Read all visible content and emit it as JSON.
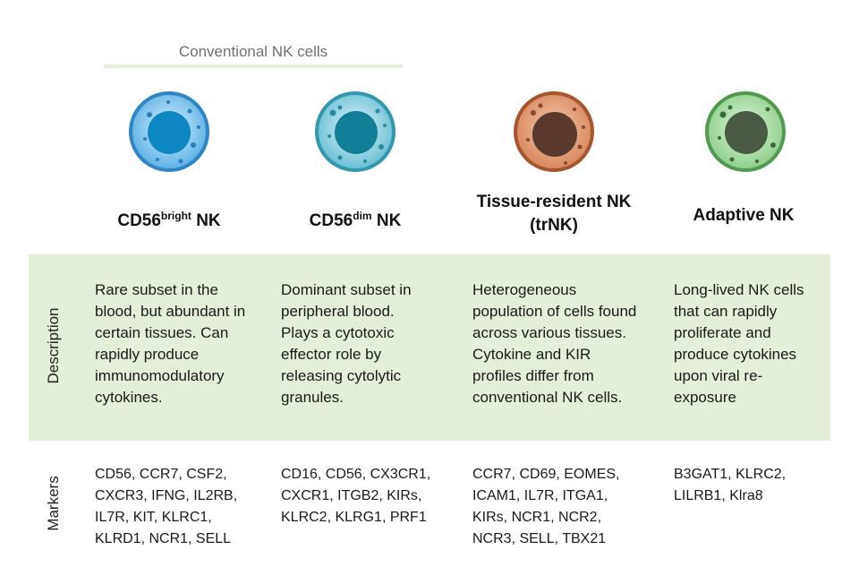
{
  "group": {
    "label": "Conventional NK cells"
  },
  "rows": {
    "description": "Description",
    "markers": "Markers"
  },
  "cells": [
    {
      "title_main": "CD56",
      "title_sup": "bright",
      "title_rest": " NK",
      "title_line2": "",
      "color": "#5fb3e6",
      "nucleus": "#0e86c2",
      "description": "Rare subset in the blood, but abundant in certain tissues. Can rapidly produce immunomodulatory cytokines.",
      "markers": "CD56, CCR7, CSF2, CXCR3, IFNG, IL2RB, IL7R, KIT, KLRC1, KLRD1, NCR1, SELL"
    },
    {
      "title_main": "CD56",
      "title_sup": "dim",
      "title_rest": " NK",
      "title_line2": "",
      "color": "#6cc1d6",
      "nucleus": "#117d97",
      "description": "Dominant subset in peripheral blood. Plays a cytotoxic effector role by releasing cytolytic granules.",
      "markers": "CD16, CD56, CX3CR1, CXCR1, ITGB2, KIRs, KLRC2, KLRG1, PRF1"
    },
    {
      "title_main": "Tissue-resident NK",
      "title_sup": "",
      "title_rest": "",
      "title_line2": "(trNK)",
      "color": "#d9895e",
      "nucleus": "#5a3a2e",
      "description": "Heterogeneous population of cells found across various tissues. Cytokine and KIR profiles differ from conventional NK cells.",
      "markers": "CCR7, CD69, EOMES, ICAM1, IL7R, ITGA1, KIRs, NCR1, NCR2, NCR3, SELL, TBX21"
    },
    {
      "title_main": "Adaptive NK",
      "title_sup": "",
      "title_rest": "",
      "title_line2": "",
      "color": "#8ed08e",
      "nucleus": "#4a5a44",
      "description": "Long-lived NK cells that can rapidly proliferate and produce cytokines upon viral re-exposure",
      "markers": "B3GAT1, KLRC2, LILRB1, Klra8"
    }
  ]
}
